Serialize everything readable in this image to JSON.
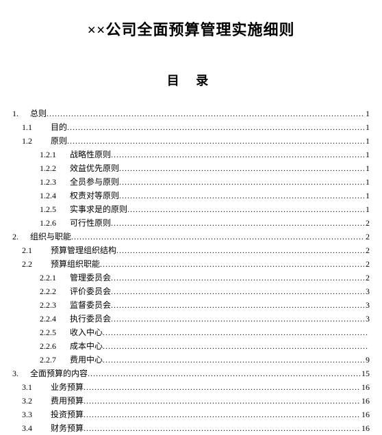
{
  "document": {
    "title": "××公司全面预算管理实施细则",
    "toc_heading": "目 录",
    "background_color": "#ffffff",
    "text_color": "#000000",
    "font_family": "SimSun",
    "title_fontsize": 22,
    "toc_heading_fontsize": 18,
    "entry_fontsize": 12,
    "line_height": 20
  },
  "toc": [
    {
      "level": 1,
      "num": "1.",
      "label": "总则",
      "page": "1"
    },
    {
      "level": 2,
      "num": "1.1",
      "label": "目的",
      "page": "1"
    },
    {
      "level": 2,
      "num": "1.2",
      "label": "原则",
      "page": "1"
    },
    {
      "level": 3,
      "num": "1.2.1",
      "label": "战略性原则",
      "page": "1"
    },
    {
      "level": 3,
      "num": "1.2.2",
      "label": "效益优先原则",
      "page": "1"
    },
    {
      "level": 3,
      "num": "1.2.3",
      "label": "全员参与原则",
      "page": "1"
    },
    {
      "level": 3,
      "num": "1.2.4",
      "label": "权责对等原则",
      "page": "1"
    },
    {
      "level": 3,
      "num": "1.2.5",
      "label": "实事求是的原则",
      "page": "1"
    },
    {
      "level": 3,
      "num": "1.2.6",
      "label": "可行性原则",
      "page": "2"
    },
    {
      "level": 1,
      "num": "2.",
      "label": "组织与职能",
      "page": "2"
    },
    {
      "level": 2,
      "num": "2.1",
      "label": "预算管理组织结构",
      "page": "2"
    },
    {
      "level": 2,
      "num": "2.2",
      "label": "预算组织职能",
      "page": "2"
    },
    {
      "level": 3,
      "num": "2.2.1",
      "label": "管理委员会",
      "page": "2"
    },
    {
      "level": 3,
      "num": "2.2.2",
      "label": "评价委员会",
      "page": "3"
    },
    {
      "level": 3,
      "num": "2.2.3",
      "label": "监督委员会",
      "page": "3"
    },
    {
      "level": 3,
      "num": "2.2.4",
      "label": "执行委员会",
      "page": "3"
    },
    {
      "level": 3,
      "num": "2.2.5",
      "label": "收入中心",
      "page": ""
    },
    {
      "level": 3,
      "num": "2.2.6",
      "label": "成本中心",
      "page": ""
    },
    {
      "level": 3,
      "num": "2.2.7",
      "label": "费用中心",
      "page": "9"
    },
    {
      "level": 1,
      "num": "3.",
      "label": "全面预算的内容",
      "page": "15"
    },
    {
      "level": 2,
      "num": "3.1",
      "label": "业务预算",
      "page": "16"
    },
    {
      "level": 2,
      "num": "3.2",
      "label": "费用预算",
      "page": "16"
    },
    {
      "level": 2,
      "num": "3.3",
      "label": "投资预算",
      "page": "16"
    },
    {
      "level": 2,
      "num": "3.4",
      "label": "财务预算",
      "page": "16"
    }
  ]
}
